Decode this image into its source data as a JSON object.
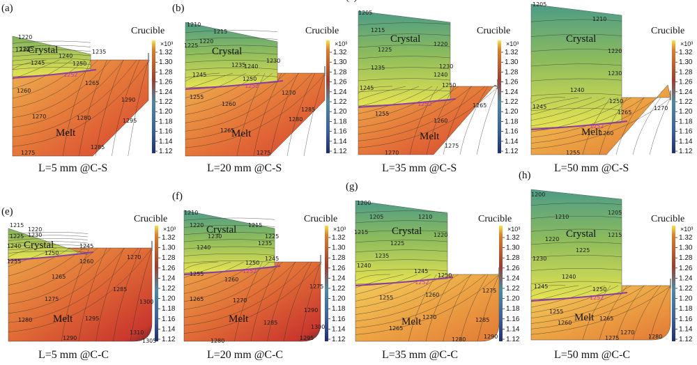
{
  "colors": {
    "interface": "#8a3ea3",
    "interface_label": "#b03ab5",
    "contour": "#303030",
    "melt_hot": "#d84232",
    "melt_warm": "#e5823a",
    "crystal_cool": "#5aa57e"
  },
  "colorbar": {
    "exponent_label": "×10³",
    "ticks": [
      "1.32",
      "1.30",
      "1.28",
      "1.26",
      "1.24",
      "1.22",
      "1.20",
      "1.18",
      "1.16",
      "1.14",
      "1.12"
    ]
  },
  "panels": [
    {
      "id": "a",
      "label": "(a)",
      "caption": "L=5 mm @C-S",
      "crystal_label": "Crystal",
      "melt_label": "Melt",
      "crucible_label": "Crucible",
      "interface_label": "1252",
      "contour_labels": [
        "1220",
        "1225",
        "1230",
        "1235",
        "1240",
        "1245",
        "1250",
        "1260",
        "1265",
        "1270",
        "1275",
        "1280",
        "1285",
        "1290",
        "1295"
      ]
    },
    {
      "id": "b",
      "label": "(b)",
      "caption": "L=20 mm @C-S",
      "crystal_label": "Crystal",
      "melt_label": "Melt",
      "crucible_label": "Crucible",
      "interface_label": "1252",
      "contour_labels": [
        "1210",
        "1215",
        "1220",
        "1225",
        "1230",
        "1235",
        "1240",
        "1245",
        "1250",
        "1255",
        "1260",
        "1265",
        "1270",
        "1275",
        "1280",
        "1285"
      ]
    },
    {
      "id": "c",
      "label": "(c)",
      "caption": "L=35 mm @C-S",
      "crystal_label": "Crystal",
      "melt_label": "Melt",
      "crucible_label": "Crucible",
      "interface_label": "1252",
      "contour_labels": [
        "1205",
        "1215",
        "1220",
        "1225",
        "1230",
        "1235",
        "1240",
        "1245",
        "1250",
        "1255",
        "1260",
        "1265",
        "1270",
        "1275"
      ]
    },
    {
      "id": "d",
      "label": "(d)",
      "caption": "L=50 mm @C-S",
      "crystal_label": "Crystal",
      "melt_label": "Melt",
      "crucible_label": "Crucible",
      "interface_label": "1252",
      "contour_labels": [
        "1205",
        "1210",
        "1220",
        "1230",
        "1240",
        "1245",
        "1250",
        "1255",
        "1260",
        "1265",
        "1270"
      ]
    },
    {
      "id": "e",
      "label": "(e)",
      "caption": "L=5 mm @C-C",
      "crystal_label": "Crystal",
      "melt_label": "Melt",
      "crucible_label": "Crucible",
      "interface_label": "",
      "contour_labels": [
        "1215",
        "1220",
        "1225",
        "1230",
        "1240",
        "1245",
        "1250",
        "1255",
        "1260",
        "1265",
        "1270",
        "1275",
        "1280",
        "1285",
        "1290",
        "1295",
        "1300",
        "1305",
        "1310"
      ]
    },
    {
      "id": "f",
      "label": "(f)",
      "caption": "L=20 mm @C-C",
      "crystal_label": "Crystal",
      "melt_label": "Melt",
      "crucible_label": "Crucible",
      "interface_label": "1252",
      "contour_labels": [
        "1210",
        "1215",
        "1220",
        "1225",
        "1230",
        "1235",
        "1240",
        "1245",
        "1250",
        "1255",
        "1260",
        "1265",
        "1270",
        "1275",
        "1280",
        "1285",
        "1290",
        "1295",
        "1300"
      ]
    },
    {
      "id": "g",
      "label": "(g)",
      "caption": "L=35 mm @C-C",
      "crystal_label": "Crystal",
      "melt_label": "Melt",
      "crucible_label": "Crucible",
      "interface_label": "1252",
      "contour_labels": [
        "1200",
        "1205",
        "1210",
        "1215",
        "1220",
        "1225",
        "1235",
        "1240",
        "1245",
        "1250",
        "1255",
        "1260",
        "1265",
        "1270",
        "1275",
        "1280",
        "1285",
        "1290"
      ]
    },
    {
      "id": "h",
      "label": "(h)",
      "caption": "L=50 mm @C-C",
      "crystal_label": "Crystal",
      "melt_label": "Melt",
      "crucible_label": "Crucible",
      "interface_label": "1252",
      "contour_labels": [
        "1200",
        "1205",
        "1210",
        "1215",
        "1220",
        "1225",
        "1230",
        "1240",
        "1245",
        "1250",
        "1255",
        "1260",
        "1265",
        "1270",
        "1275",
        "1280"
      ]
    }
  ]
}
